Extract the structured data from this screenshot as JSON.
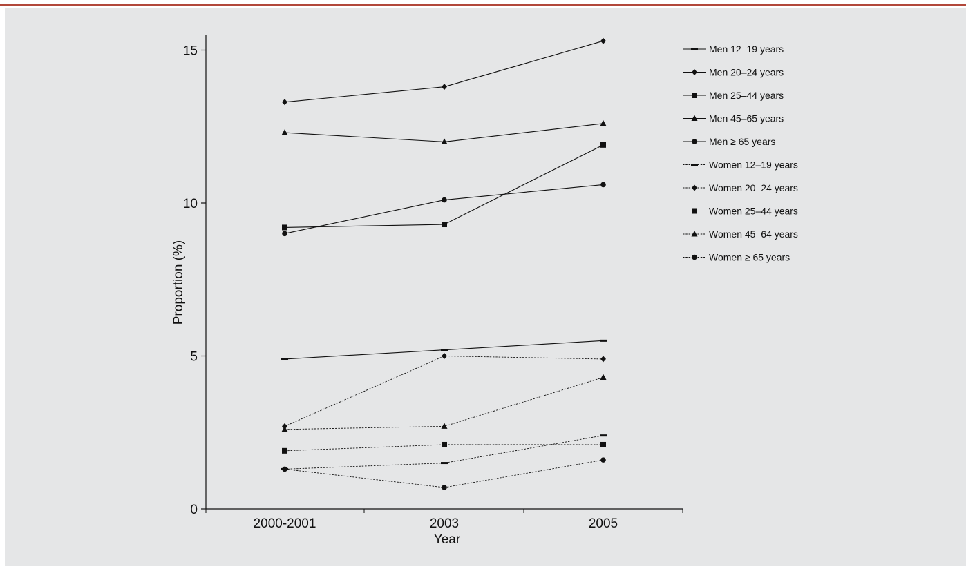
{
  "chart_data": {
    "type": "line",
    "categories": [
      "2000-2001",
      "2003",
      "2005"
    ],
    "xlabel": "Year",
    "ylabel": "Proportion (%)",
    "ylim": [
      0,
      15.5
    ],
    "yticks": [
      0,
      5,
      10,
      15
    ],
    "grid": false,
    "legend_position": "right",
    "colors": {
      "line": "#111111",
      "background": "#e5e6e7",
      "accent_rule": "#b2483a"
    },
    "series": [
      {
        "name": "Men 12–19 years",
        "style": "solid",
        "marker": "dash",
        "values": [
          4.9,
          5.2,
          5.5
        ]
      },
      {
        "name": "Men 20–24 years",
        "style": "solid",
        "marker": "diamond",
        "values": [
          13.3,
          13.8,
          15.3
        ]
      },
      {
        "name": "Men 25–44 years",
        "style": "solid",
        "marker": "square",
        "values": [
          9.2,
          9.3,
          11.9
        ]
      },
      {
        "name": "Men 45–65 years",
        "style": "solid",
        "marker": "triangle",
        "values": [
          12.3,
          12.0,
          12.6
        ]
      },
      {
        "name": "Men ≥ 65 years",
        "style": "solid",
        "marker": "circle",
        "values": [
          9.0,
          10.1,
          10.6
        ]
      },
      {
        "name": "Women 12–19 years",
        "style": "dashed",
        "marker": "dash",
        "values": [
          1.3,
          1.5,
          2.4
        ]
      },
      {
        "name": "Women 20–24 years",
        "style": "dashed",
        "marker": "diamond",
        "values": [
          2.7,
          5.0,
          4.9
        ]
      },
      {
        "name": "Women 25–44 years",
        "style": "dashed",
        "marker": "square",
        "values": [
          1.9,
          2.1,
          2.1
        ]
      },
      {
        "name": "Women 45–64 years",
        "style": "dashed",
        "marker": "triangle",
        "values": [
          2.6,
          2.7,
          4.3
        ]
      },
      {
        "name": "Women ≥ 65 years",
        "style": "dashed",
        "marker": "circle",
        "values": [
          1.3,
          0.7,
          1.6
        ]
      }
    ]
  }
}
